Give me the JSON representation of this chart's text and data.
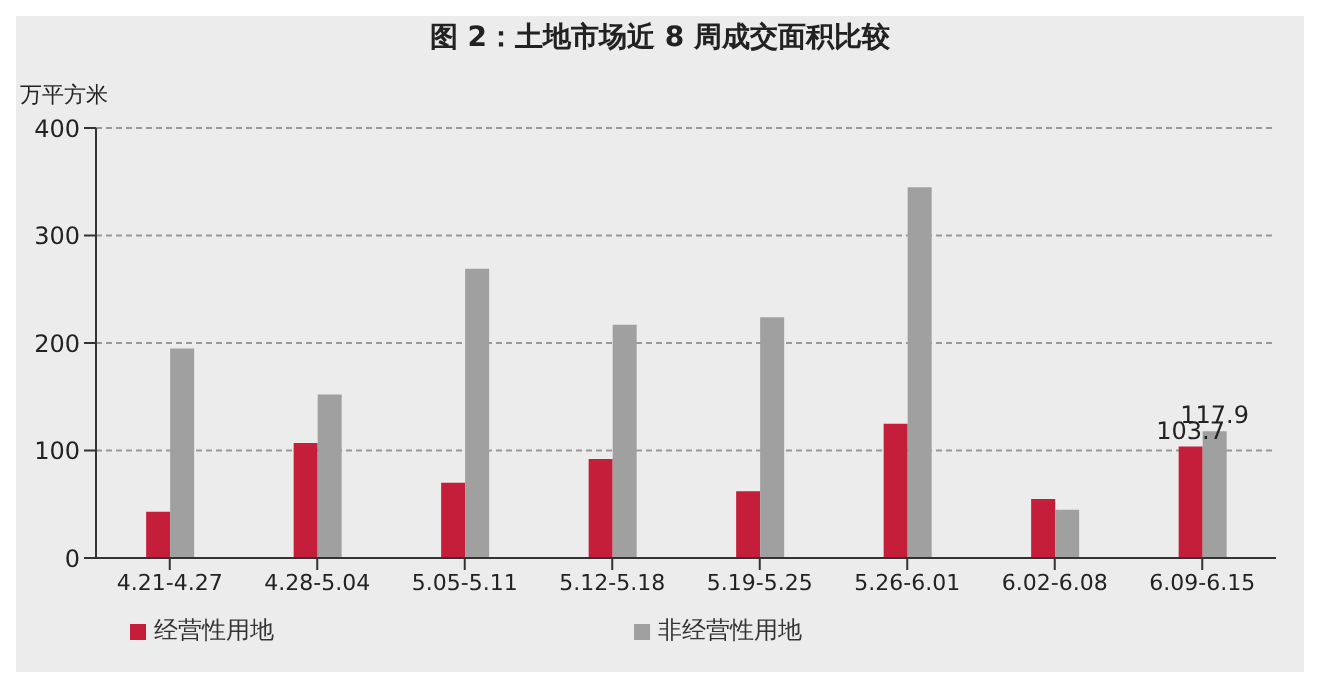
{
  "chart_data": {
    "type": "bar",
    "title": "图 2：土地市场近 8 周成交面积比较",
    "ylabel": "万平方米",
    "categories": [
      "4.21-4.27",
      "4.28-5.04",
      "5.05-5.11",
      "5.12-5.18",
      "5.19-5.25",
      "5.26-6.01",
      "6.02-6.08",
      "6.09-6.15"
    ],
    "series": [
      {
        "name": "经营性用地",
        "color": "#c41e3a",
        "values": [
          43,
          107,
          70,
          92,
          62,
          125,
          55,
          103.7
        ],
        "value_labels": [
          null,
          null,
          null,
          null,
          null,
          null,
          null,
          "103.7"
        ]
      },
      {
        "name": "非经营性用地",
        "color": "#a0a0a0",
        "values": [
          195,
          152,
          269,
          217,
          224,
          345,
          45,
          117.9
        ],
        "value_labels": [
          null,
          null,
          null,
          null,
          null,
          null,
          null,
          "117.9"
        ]
      }
    ],
    "ylim": [
      0,
      400
    ],
    "yticks": [
      0,
      100,
      200,
      300,
      400
    ],
    "grid": "y",
    "legend": "bottom"
  }
}
